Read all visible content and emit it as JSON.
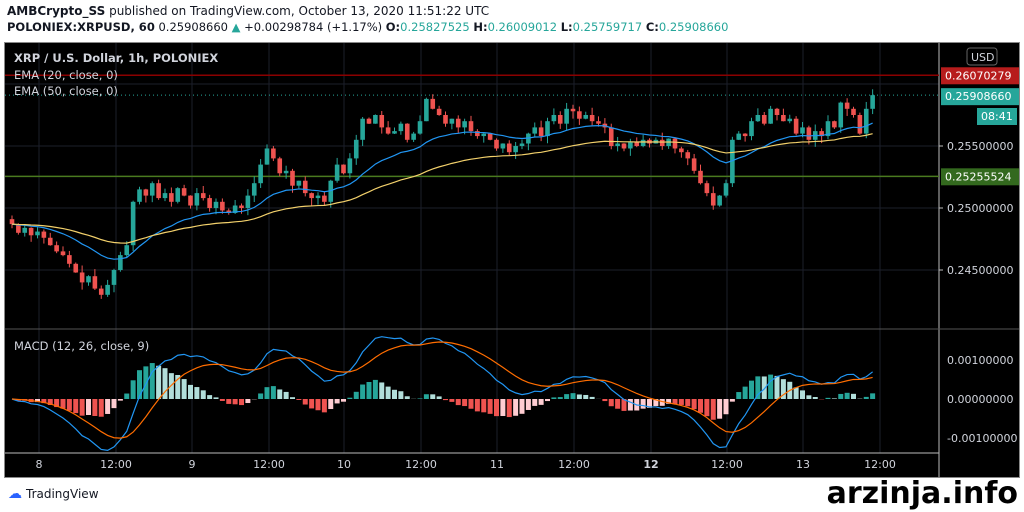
{
  "header": {
    "author": "AMBCrypto_SS",
    "published": "published on TradingView.com, October 13, 2020 11:51:22 UTC",
    "symbol": "POLONIEX:XRPUSD, 60",
    "last": "0.25908660",
    "change": "+0.00298784 (+1.17%)",
    "open_label": "O:",
    "open": "0.25827525",
    "high_label": "H:",
    "high": "0.26009012",
    "low_label": "L:",
    "low": "0.25759717",
    "close_label": "C:",
    "close": "0.25908660"
  },
  "legend": {
    "title": "XRP / U.S. Dollar, 1h, POLONIEX",
    "ema20": "EMA (20, close, 0)",
    "ema50": "EMA (50, close, 0)",
    "macd": "MACD (12, 26, close, 9)"
  },
  "price_axis": {
    "currency": "USD",
    "ticks": [
      "0.25500000",
      "0.25000000",
      "0.24500000"
    ],
    "labels": {
      "red": "0.26070279",
      "last": "0.25908660",
      "countdown": "08:41",
      "green": "0.25255524"
    }
  },
  "macd_axis": {
    "ticks": [
      "0.00100000",
      "0.00000000",
      "-0.00100000"
    ]
  },
  "time_axis": [
    "8",
    "12:00",
    "9",
    "12:00",
    "10",
    "12:00",
    "11",
    "12:00",
    "12",
    "12:00",
    "13",
    "12:00"
  ],
  "colors": {
    "up": "#26a69a",
    "down": "#ef5350",
    "ema20": "#2196f3",
    "ema50": "#f2d06b",
    "macd": "#2196f3",
    "signal": "#ff6d00",
    "red_line": "#8b0000",
    "green_line": "#4a7a1f"
  },
  "footer": {
    "brand": "TradingView",
    "watermark": "arzinja.info"
  },
  "chart_data": {
    "type": "candlestick",
    "interval": "1h",
    "ylim": [
      0.2415,
      0.2625
    ],
    "horizontal_lines": [
      0.26070279,
      0.25255524
    ],
    "closes": [
      0.2487,
      0.248,
      0.2484,
      0.2478,
      0.2481,
      0.2476,
      0.247,
      0.2465,
      0.2462,
      0.2455,
      0.2448,
      0.244,
      0.2445,
      0.2435,
      0.243,
      0.2438,
      0.245,
      0.2462,
      0.247,
      0.2505,
      0.2515,
      0.251,
      0.252,
      0.2508,
      0.2512,
      0.2505,
      0.2516,
      0.251,
      0.2502,
      0.2512,
      0.2508,
      0.25,
      0.2505,
      0.2498,
      0.2496,
      0.2502,
      0.25,
      0.251,
      0.252,
      0.2535,
      0.2548,
      0.254,
      0.2528,
      0.253,
      0.2518,
      0.2522,
      0.2512,
      0.2508,
      0.251,
      0.2505,
      0.2522,
      0.2535,
      0.2528,
      0.254,
      0.2555,
      0.2572,
      0.2568,
      0.2575,
      0.2565,
      0.256,
      0.2562,
      0.2568,
      0.2555,
      0.256,
      0.257,
      0.2588,
      0.258,
      0.2575,
      0.2568,
      0.2572,
      0.2565,
      0.257,
      0.2562,
      0.2558,
      0.256,
      0.2555,
      0.2548,
      0.2552,
      0.2545,
      0.255,
      0.2552,
      0.256,
      0.2565,
      0.2558,
      0.257,
      0.2575,
      0.2568,
      0.258,
      0.2578,
      0.2572,
      0.2575,
      0.257,
      0.2568,
      0.2565,
      0.255,
      0.2552,
      0.2548,
      0.2553,
      0.255,
      0.2555,
      0.2552,
      0.2555,
      0.255,
      0.2556,
      0.2548,
      0.2545,
      0.254,
      0.253,
      0.252,
      0.2512,
      0.2502,
      0.251,
      0.252,
      0.2555,
      0.256,
      0.2558,
      0.257,
      0.2575,
      0.2568,
      0.258,
      0.2575,
      0.257,
      0.2572,
      0.256,
      0.2565,
      0.2555,
      0.2562,
      0.2558,
      0.257,
      0.2565,
      0.2585,
      0.258,
      0.2575,
      0.256,
      0.258,
      0.2591
    ]
  }
}
